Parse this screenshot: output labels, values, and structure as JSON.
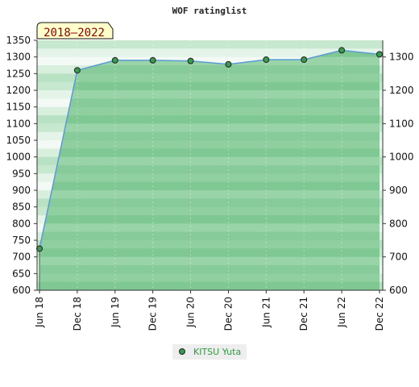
{
  "chart_data": {
    "type": "area",
    "title": "WOF ratinglist",
    "badge": "2018–2022",
    "x_labels": [
      "Jun 18",
      "Dec 18",
      "Jun 19",
      "Dec 19",
      "Jun 20",
      "Dec 20",
      "Jun 21",
      "Dec 21",
      "Jun 22",
      "Dec 22"
    ],
    "series": [
      {
        "name": "KITSU Yuta",
        "values": [
          725,
          1260,
          1290,
          1290,
          1288,
          1278,
          1292,
          1292,
          1320,
          1308
        ]
      }
    ],
    "ylim": [
      600,
      1350
    ],
    "y_ticks_left": [
      600,
      650,
      700,
      750,
      800,
      850,
      900,
      950,
      1000,
      1050,
      1100,
      1150,
      1200,
      1250,
      1300,
      1350
    ],
    "y_ticks_right": [
      600,
      700,
      800,
      900,
      1000,
      1100,
      1200,
      1300
    ],
    "legend_position": "bottom",
    "colors": {
      "line": "#5b9bd5",
      "area": "#8fcfa0",
      "marker": "#3a9a4e",
      "legend_text": "#2e9a3e",
      "badge_fill": "#ffffcc",
      "badge_text": "#8b0000"
    }
  }
}
